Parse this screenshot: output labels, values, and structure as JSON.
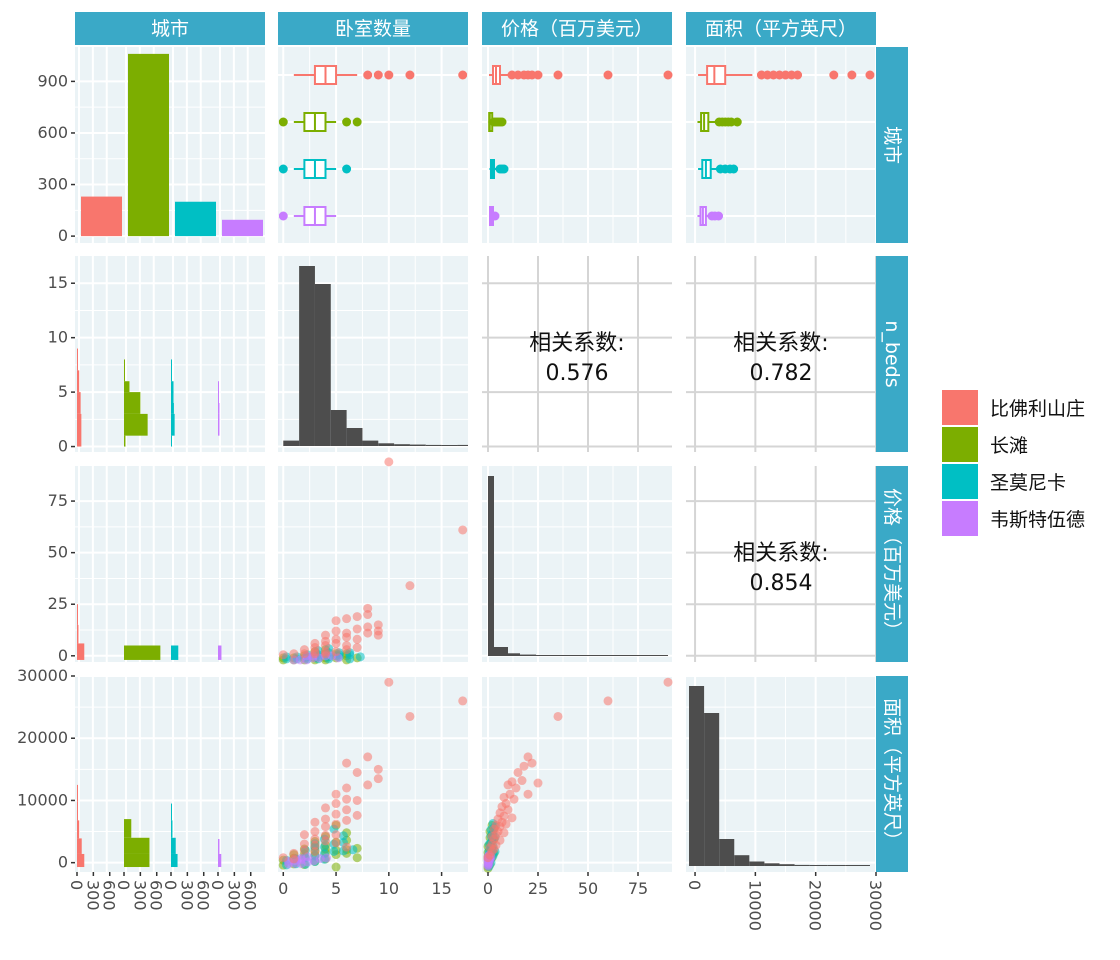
{
  "chart_data": {
    "type": "scatter",
    "variables": [
      "城市",
      "卧室数量",
      "价格（百万美元）",
      "面积（平方英尺）"
    ],
    "row_strips": [
      "城市",
      "n_beds",
      "价格（百万美元）",
      "面积（平方英尺）"
    ],
    "legend": {
      "placement": "right",
      "entries": [
        {
          "name": "比佛利山庄",
          "color": "#F8766D"
        },
        {
          "name": "长滩",
          "color": "#7CAE00"
        },
        {
          "name": "圣莫尼卡",
          "color": "#00BFC4"
        },
        {
          "name": "韦斯特伍德",
          "color": "#C77CFF"
        }
      ]
    },
    "colors": {
      "panel_bg": "#EBF3F6",
      "grid": "#FFFFFF",
      "strip_bg": "#3AA9C7",
      "histogram": "#4D4D4D"
    },
    "city_counts": {
      "categories": [
        "比佛利山庄",
        "长滩",
        "圣莫尼卡",
        "韦斯特伍德"
      ],
      "values": [
        230,
        1060,
        200,
        95
      ]
    },
    "axes": {
      "city_count_y": {
        "range": [
          -40,
          1100
        ],
        "ticks": [
          "0",
          "300",
          "600",
          "900"
        ]
      },
      "beds": {
        "range": [
          -0.5,
          17.5
        ],
        "ticks": [
          "0",
          "5",
          "10",
          "15"
        ],
        "row_ticks": [
          "0",
          "5",
          "10",
          "15"
        ]
      },
      "price": {
        "range": [
          -3,
          92
        ],
        "ticks": [
          "0",
          "25",
          "50",
          "75"
        ],
        "row_ticks": [
          "0",
          "25",
          "50",
          "75"
        ]
      },
      "sqft": {
        "range": [
          -1500,
          30000
        ],
        "ticks": [
          "0",
          "10000",
          "20000",
          "30000"
        ],
        "row_ticks": [
          "0",
          "10000",
          "20000",
          "30000"
        ]
      },
      "count_x_ticks": [
        "0",
        "300",
        "600"
      ]
    },
    "correlations": [
      {
        "pair": [
          "卧室数量",
          "价格（百万美元）"
        ],
        "label": "相关系数:",
        "value": "0.576"
      },
      {
        "pair": [
          "卧室数量",
          "面积（平方英尺）"
        ],
        "label": "相关系数:",
        "value": "0.782"
      },
      {
        "pair": [
          "价格（百万美元）",
          "面积（平方英尺）"
        ],
        "label": "相关系数:",
        "value": "0.854"
      }
    ],
    "boxplots": {
      "beds": [
        {
          "q1": 3,
          "median": 4,
          "q3": 5,
          "lo": 1,
          "hi": 7,
          "outliers": [
            8,
            9,
            10,
            12,
            17
          ]
        },
        {
          "q1": 2,
          "median": 3,
          "q3": 4,
          "lo": 1,
          "hi": 5,
          "outliers": [
            0,
            6,
            7
          ]
        },
        {
          "q1": 2,
          "median": 3,
          "q3": 4,
          "lo": 1,
          "hi": 5,
          "outliers": [
            0,
            6
          ]
        },
        {
          "q1": 2,
          "median": 3,
          "q3": 4,
          "lo": 1,
          "hi": 5,
          "outliers": [
            0
          ]
        }
      ],
      "price": [
        {
          "q1": 2.5,
          "median": 4,
          "q3": 6,
          "lo": 0.5,
          "hi": 10,
          "outliers": [
            12,
            15,
            18,
            20,
            22,
            25,
            35,
            60,
            90
          ]
        },
        {
          "q1": 0.6,
          "median": 0.9,
          "q3": 1.3,
          "lo": 0.2,
          "hi": 2.5,
          "outliers": [
            3,
            4,
            5,
            6,
            7
          ]
        },
        {
          "q1": 1.5,
          "median": 2.2,
          "q3": 3,
          "lo": 0.7,
          "hi": 5,
          "outliers": [
            6,
            7,
            8
          ]
        },
        {
          "q1": 1,
          "median": 1.5,
          "q3": 2,
          "lo": 0.5,
          "hi": 3,
          "outliers": [
            3.5
          ]
        }
      ],
      "sqft": [
        {
          "q1": 2000,
          "median": 3200,
          "q3": 5000,
          "lo": 500,
          "hi": 9500,
          "outliers": [
            11000,
            12000,
            13000,
            14000,
            15000,
            16000,
            17000,
            23000,
            26000,
            29000
          ]
        },
        {
          "q1": 1000,
          "median": 1500,
          "q3": 2200,
          "lo": 400,
          "hi": 3500,
          "outliers": [
            4000,
            4500,
            5000,
            5500,
            6000,
            7000
          ]
        },
        {
          "q1": 1200,
          "median": 1800,
          "q3": 2600,
          "lo": 500,
          "hi": 3800,
          "outliers": [
            4200,
            5000,
            5800,
            6400
          ]
        },
        {
          "q1": 900,
          "median": 1300,
          "q3": 1800,
          "lo": 400,
          "hi": 2500,
          "outliers": [
            2800,
            3300,
            3900
          ]
        }
      ]
    },
    "histograms": {
      "beds": {
        "edges": [
          0,
          1.5,
          3,
          4.5,
          6,
          7.5,
          9,
          10.5,
          12,
          13.5,
          15,
          16.5,
          17.5
        ],
        "heights": [
          0.03,
          1.0,
          0.9,
          0.2,
          0.1,
          0.03,
          0.015,
          0.01,
          0.008,
          0.006,
          0.005,
          0.006
        ]
      },
      "price": {
        "edges": [
          0,
          3,
          10,
          16,
          24,
          32,
          45,
          60,
          75,
          90
        ],
        "heights": [
          1.0,
          0.05,
          0.015,
          0.008,
          0.005,
          0.004,
          0.003,
          0.002,
          0.002
        ]
      },
      "sqft": {
        "edges": [
          -1000,
          1500,
          4000,
          6500,
          9000,
          11500,
          14000,
          16500,
          19000,
          22000,
          25000,
          29000
        ],
        "heights": [
          1.0,
          0.85,
          0.15,
          0.06,
          0.025,
          0.015,
          0.01,
          0.006,
          0.004,
          0.003,
          0.002
        ]
      }
    },
    "count_histograms": {
      "beds": [
        {
          "edges": [
            0,
            3,
            5,
            7,
            9
          ],
          "counts": [
            120,
            100,
            60,
            20
          ]
        },
        {
          "edges": [
            0,
            1,
            3,
            4,
            5,
            6,
            8
          ],
          "counts": [
            40,
            650,
            450,
            450,
            150,
            20
          ]
        },
        {
          "edges": [
            0,
            1,
            3,
            4,
            6,
            8
          ],
          "counts": [
            20,
            100,
            80,
            70,
            20
          ]
        },
        {
          "edges": [
            1,
            3,
            4,
            6
          ],
          "counts": [
            40,
            40,
            15
          ]
        }
      ],
      "price": [
        {
          "edges": [
            -2,
            6,
            15,
            25
          ],
          "counts": [
            200,
            40,
            10
          ]
        },
        {
          "edges": [
            -2,
            5
          ],
          "counts": [
            1000
          ]
        },
        {
          "edges": [
            -2,
            5
          ],
          "counts": [
            200
          ]
        },
        {
          "edges": [
            -2,
            5
          ],
          "counts": [
            95
          ]
        }
      ],
      "sqft": [
        {
          "edges": [
            -700,
            1400,
            3900,
            6800,
            9800,
            12500
          ],
          "counts": [
            200,
            130,
            60,
            25,
            10
          ]
        },
        {
          "edges": [
            -700,
            1400,
            4000,
            7000
          ],
          "counts": [
            700,
            700,
            200
          ]
        },
        {
          "edges": [
            -700,
            1400,
            4000,
            6800,
            9500
          ],
          "counts": [
            180,
            130,
            40,
            10
          ]
        },
        {
          "edges": [
            -700,
            1400,
            3800
          ],
          "counts": [
            90,
            40
          ]
        }
      ]
    },
    "scatter": {
      "beds_price": [
        [
          10,
          94
        ],
        [
          17,
          61
        ],
        [
          12,
          34
        ],
        [
          8,
          23
        ],
        [
          8,
          20
        ],
        [
          7,
          19
        ],
        [
          6,
          18
        ],
        [
          5,
          17
        ],
        [
          9,
          15
        ],
        [
          8,
          14
        ],
        [
          7,
          13
        ],
        [
          9,
          12
        ],
        [
          8,
          11
        ],
        [
          9,
          10
        ],
        [
          6,
          11
        ],
        [
          5,
          12
        ],
        [
          4,
          10
        ],
        [
          6,
          9
        ],
        [
          5,
          8
        ],
        [
          4,
          7
        ],
        [
          3,
          6
        ],
        [
          7,
          8
        ],
        [
          5,
          6
        ],
        [
          4,
          5
        ],
        [
          6,
          5
        ],
        [
          3,
          4
        ],
        [
          2,
          3
        ],
        [
          3,
          2
        ],
        [
          4,
          2
        ],
        [
          5,
          2
        ],
        [
          6,
          3
        ],
        [
          2,
          1
        ],
        [
          1,
          1
        ],
        [
          0,
          0.5
        ],
        [
          3,
          1
        ],
        [
          4,
          1
        ],
        [
          7,
          4
        ]
      ],
      "beds_price_other": [
        [
          0,
          -2
        ],
        [
          1,
          -2
        ],
        [
          2,
          -2
        ],
        [
          3,
          -1
        ],
        [
          4,
          -1
        ],
        [
          5,
          0
        ],
        [
          6,
          0
        ],
        [
          7,
          -1
        ],
        [
          2,
          0
        ],
        [
          3,
          0
        ],
        [
          4,
          1
        ],
        [
          5,
          1
        ],
        [
          6,
          1
        ],
        [
          3,
          2
        ],
        [
          4,
          3
        ],
        [
          2,
          -1
        ],
        [
          1,
          -1
        ],
        [
          5,
          -1
        ],
        [
          6,
          -2
        ],
        [
          4,
          -2
        ],
        [
          3,
          -2
        ],
        [
          0,
          -1
        ]
      ],
      "beds_sqft": [
        [
          10,
          29000
        ],
        [
          17,
          26000
        ],
        [
          12,
          23500
        ],
        [
          8,
          17000
        ],
        [
          6,
          16000
        ],
        [
          9,
          15000
        ],
        [
          7,
          14500
        ],
        [
          9,
          13500
        ],
        [
          8,
          12500
        ],
        [
          6,
          12000
        ],
        [
          5,
          11000
        ],
        [
          6,
          10200
        ],
        [
          7,
          10000
        ],
        [
          5,
          9500
        ],
        [
          4,
          8800
        ],
        [
          6,
          8500
        ],
        [
          5,
          7800
        ],
        [
          7,
          7600
        ],
        [
          4,
          7000
        ],
        [
          6,
          6800
        ],
        [
          3,
          6500
        ],
        [
          5,
          6200
        ],
        [
          4,
          5800
        ],
        [
          3,
          5000
        ],
        [
          2,
          4500
        ],
        [
          4,
          4400
        ],
        [
          5,
          4500
        ],
        [
          3,
          3800
        ],
        [
          4,
          3500
        ],
        [
          2,
          3000
        ],
        [
          3,
          2800
        ],
        [
          6,
          2500
        ],
        [
          5,
          3200
        ],
        [
          2,
          2000
        ],
        [
          1,
          1500
        ],
        [
          3,
          1800
        ],
        [
          0,
          800
        ],
        [
          1,
          600
        ]
      ],
      "beds_sqft_other": [
        [
          5,
          6000
        ],
        [
          6,
          4800
        ],
        [
          4,
          4200
        ],
        [
          3,
          3400
        ],
        [
          5,
          3300
        ],
        [
          6,
          3600
        ],
        [
          4,
          2800
        ],
        [
          3,
          2600
        ],
        [
          2,
          2200
        ],
        [
          5,
          2000
        ],
        [
          6,
          2100
        ],
        [
          7,
          2300
        ],
        [
          4,
          1600
        ],
        [
          3,
          1200
        ],
        [
          2,
          900
        ],
        [
          1,
          700
        ],
        [
          0,
          400
        ],
        [
          0,
          -400
        ],
        [
          1,
          -200
        ],
        [
          2,
          -300
        ],
        [
          3,
          200
        ],
        [
          4,
          600
        ],
        [
          5,
          1300
        ],
        [
          6,
          1500
        ],
        [
          2,
          1400
        ],
        [
          3,
          1900
        ],
        [
          4,
          2200
        ],
        [
          5,
          -700
        ],
        [
          1,
          1300
        ],
        [
          7,
          800
        ]
      ],
      "price_sqft": [
        [
          90,
          29000
        ],
        [
          60,
          26000
        ],
        [
          35,
          23500
        ],
        [
          20,
          17000
        ],
        [
          22,
          16000
        ],
        [
          18,
          15500
        ],
        [
          15,
          14500
        ],
        [
          25,
          12800
        ],
        [
          17,
          13200
        ],
        [
          12,
          13000
        ],
        [
          10,
          12500
        ],
        [
          14,
          12000
        ],
        [
          20,
          11000
        ],
        [
          11,
          11000
        ],
        [
          8,
          10500
        ],
        [
          13,
          10200
        ],
        [
          9,
          9500
        ],
        [
          7,
          9000
        ],
        [
          10,
          8500
        ],
        [
          6,
          8000
        ],
        [
          8,
          7500
        ],
        [
          12,
          7200
        ],
        [
          5,
          7000
        ],
        [
          7,
          6500
        ],
        [
          9,
          6200
        ],
        [
          4,
          6000
        ],
        [
          6,
          5800
        ],
        [
          3,
          5400
        ],
        [
          5,
          5000
        ],
        [
          8,
          4800
        ],
        [
          4,
          4500
        ],
        [
          2,
          4200
        ],
        [
          3,
          3800
        ],
        [
          6,
          3600
        ],
        [
          2,
          3000
        ],
        [
          4,
          2800
        ],
        [
          1,
          2400
        ],
        [
          3,
          2200
        ],
        [
          2,
          1800
        ],
        [
          1,
          1200
        ],
        [
          0,
          800
        ]
      ],
      "price_sqft_other": [
        [
          2,
          6000
        ],
        [
          3,
          5500
        ],
        [
          1,
          5000
        ],
        [
          2,
          4500
        ],
        [
          1,
          4000
        ],
        [
          3,
          3800
        ],
        [
          2,
          3500
        ],
        [
          1,
          3000
        ],
        [
          0,
          2600
        ],
        [
          2,
          2400
        ],
        [
          1,
          2000
        ],
        [
          0,
          1600
        ],
        [
          1,
          1400
        ],
        [
          0,
          1000
        ],
        [
          2,
          1200
        ],
        [
          0,
          600
        ],
        [
          1,
          400
        ],
        [
          0,
          0
        ],
        [
          1,
          -300
        ],
        [
          0,
          -600
        ],
        [
          0,
          -900
        ],
        [
          2,
          800
        ],
        [
          3,
          1500
        ]
      ]
    }
  }
}
